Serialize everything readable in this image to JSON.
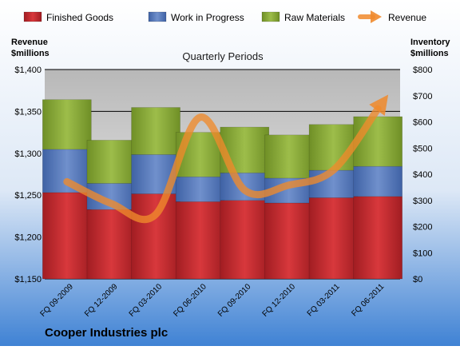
{
  "chart_data": {
    "type": "bar",
    "stacked": true,
    "subtitle": "Quarterly Periods",
    "company": "Cooper Industries plc",
    "left_axis_label": [
      "Revenue",
      "$millions"
    ],
    "right_axis_label": [
      "Inventory",
      "$millions"
    ],
    "categories": [
      "FQ 09-2009",
      "FQ 12-2009",
      "FQ 03-2010",
      "FQ 06-2010",
      "FQ 09-2010",
      "FQ 12-2010",
      "FQ 03-2011",
      "FQ 06-2011"
    ],
    "left_axis": {
      "min": 1150,
      "max": 1400,
      "ticks": [
        "$1,150",
        "$1,200",
        "$1,250",
        "$1,300",
        "$1,350",
        "$1,400"
      ]
    },
    "right_axis": {
      "min": 0,
      "max": 800,
      "ticks": [
        "$0",
        "$100",
        "$200",
        "$300",
        "$400",
        "$500",
        "$600",
        "$700",
        "$800"
      ]
    },
    "grid": true,
    "legend_position": "top",
    "series": [
      {
        "name": "Finished Goods",
        "kind": "bar",
        "axis": "right",
        "color": "#c0262a",
        "values": [
          330,
          265,
          325,
          295,
          300,
          290,
          310,
          315
        ]
      },
      {
        "name": "Work in Progress",
        "kind": "bar",
        "axis": "right",
        "color": "#5578b8",
        "values": [
          165,
          100,
          150,
          95,
          105,
          95,
          105,
          115
        ]
      },
      {
        "name": "Raw Materials",
        "kind": "bar",
        "axis": "right",
        "color": "#8aa936",
        "values": [
          190,
          165,
          180,
          170,
          175,
          165,
          175,
          190
        ]
      },
      {
        "name": "Revenue",
        "kind": "line",
        "axis": "left",
        "color": "#f08a2c",
        "values": [
          1266,
          1240,
          1227,
          1343,
          1256,
          1262,
          1280,
          1353
        ]
      }
    ]
  }
}
